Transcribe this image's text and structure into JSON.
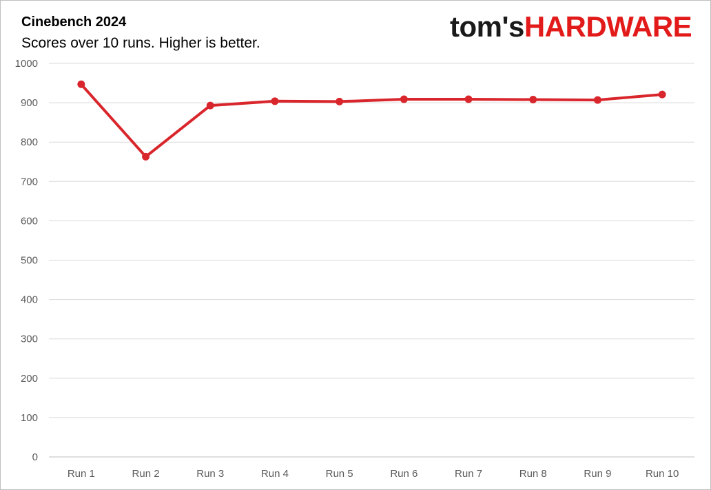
{
  "logo": {
    "part1": "tom's",
    "part2": "HARDWARE"
  },
  "colors": {
    "series": "#d9262c",
    "grid": "#d9d9d9",
    "axis_text": "#595959",
    "logo_red": "#e21a1a"
  },
  "chart_data": {
    "type": "line",
    "title": "Cinebench 2024",
    "subtitle": "Scores over 10 runs. Higher is better.",
    "xlabel": "",
    "ylabel": "",
    "categories": [
      "Run 1",
      "Run 2",
      "Run 3",
      "Run 4",
      "Run 5",
      "Run 6",
      "Run 7",
      "Run 8",
      "Run 9",
      "Run 10"
    ],
    "series": [
      {
        "values": [
          947,
          763,
          893,
          904,
          903,
          909,
          909,
          908,
          907,
          921
        ]
      }
    ],
    "ylim": [
      0,
      1000
    ],
    "yticks": [
      0,
      100,
      200,
      300,
      400,
      500,
      600,
      700,
      800,
      900,
      1000
    ],
    "grid": true,
    "legend": "none"
  }
}
